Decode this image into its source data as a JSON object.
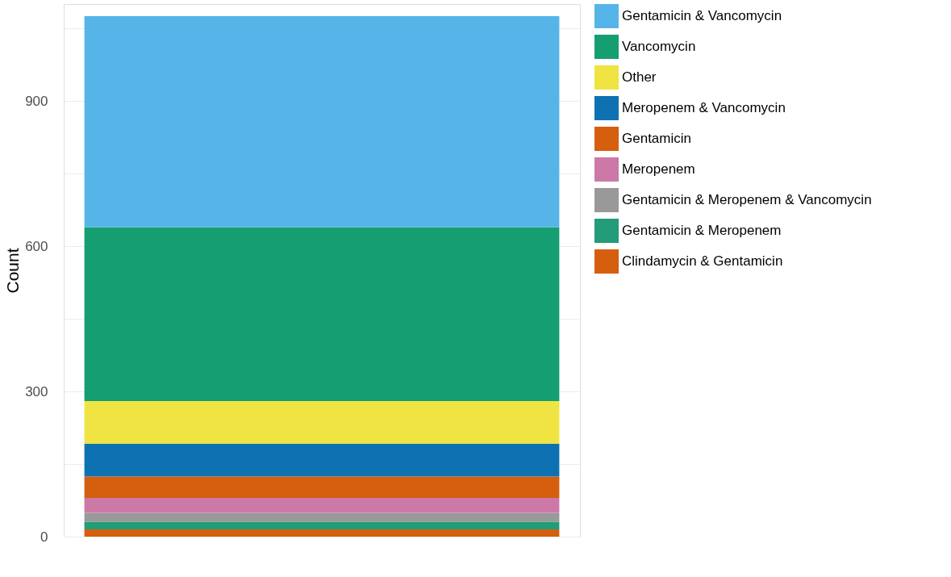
{
  "chart_data": {
    "type": "bar",
    "stacked": true,
    "ylabel": "Count",
    "categories": [
      null
    ],
    "series": [
      {
        "name": "Clindamycin & Gentamicin",
        "color": "#d55e0f",
        "values": [
          15
        ]
      },
      {
        "name": "Gentamicin & Meropenem",
        "color": "#229c79",
        "values": [
          16
        ]
      },
      {
        "name": "Gentamicin & Meropenem & Vancomycin",
        "color": "#999999",
        "values": [
          18
        ]
      },
      {
        "name": "Meropenem",
        "color": "#cc79a7",
        "values": [
          31
        ]
      },
      {
        "name": "Gentamicin",
        "color": "#d55e0f",
        "values": [
          44
        ]
      },
      {
        "name": "Meropenem & Vancomycin",
        "color": "#0e72b2",
        "values": [
          68
        ]
      },
      {
        "name": "Other",
        "color": "#f0e442",
        "values": [
          88
        ]
      },
      {
        "name": "Vancomycin",
        "color": "#149e72",
        "values": [
          359
        ]
      },
      {
        "name": "Gentamicin & Vancomycin",
        "color": "#56b4e9",
        "values": [
          436
        ]
      }
    ],
    "ylim": [
      0,
      1100
    ],
    "yticks": [
      0,
      {
        "value": 150,
        "label": null
      },
      300,
      {
        "value": 450,
        "label": null
      },
      600,
      {
        "value": 750,
        "label": null
      },
      900,
      {
        "value": 1050,
        "label": null
      }
    ],
    "grid": "y",
    "legend": "right"
  }
}
